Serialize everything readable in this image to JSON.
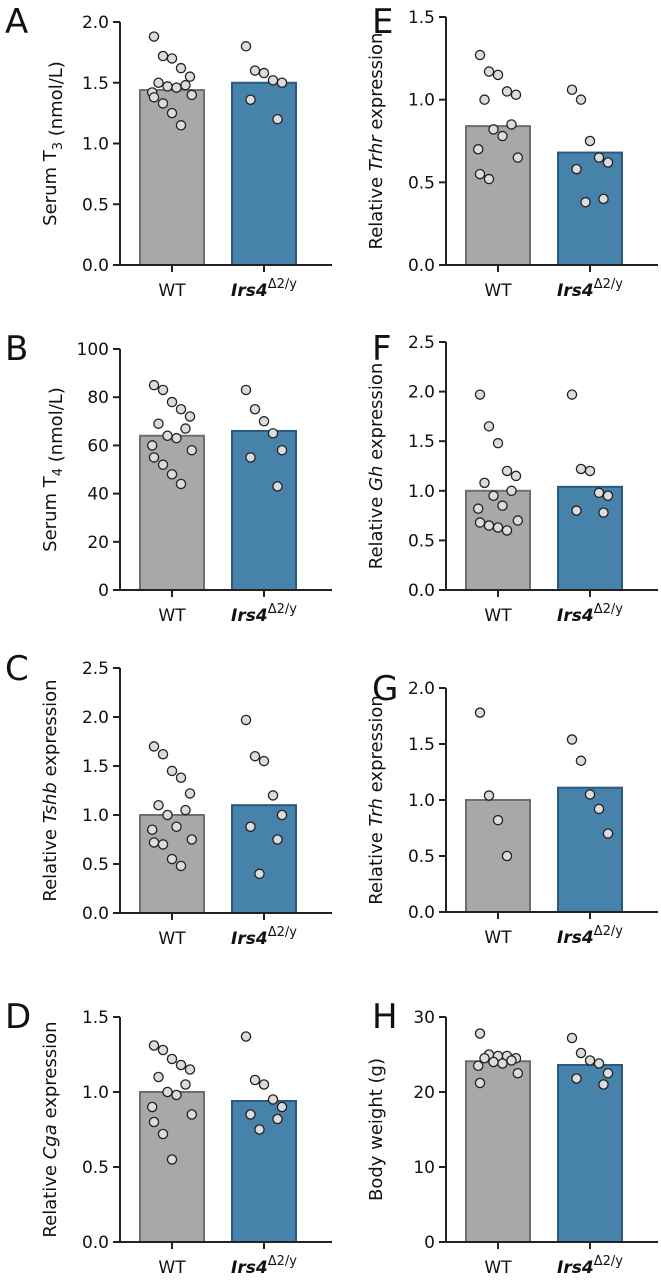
{
  "figure": {
    "colors": {
      "wt_bar": "#a8a8a8",
      "wt_edge": "#6e6e6e",
      "mut_bar": "#4682aa",
      "mut_edge": "#2a5a82",
      "point_fill": "#dcdcdc",
      "point_edge": "#222222"
    }
  },
  "chart_data": [
    {
      "id": "A",
      "panel_label": "A",
      "type": "bar",
      "title": "",
      "ylabel": {
        "pre": "Serum T",
        "sub": "3",
        "post": " (nmol/L)"
      },
      "categories": [
        "WT",
        "Irs4"
      ],
      "category_superscript": "Δ2/y",
      "yticks": [
        "0.0",
        "0.5",
        "1.0",
        "1.5",
        "2.0"
      ],
      "ylim": [
        0,
        2.0
      ],
      "values": [
        1.44,
        1.5
      ],
      "points": [
        [
          1.88,
          1.72,
          1.7,
          1.62,
          1.55,
          1.5,
          1.48,
          1.47,
          1.46,
          1.42,
          1.4,
          1.38,
          1.33,
          1.25,
          1.15
        ],
        [
          1.8,
          1.6,
          1.58,
          1.52,
          1.5,
          1.36,
          1.2
        ]
      ]
    },
    {
      "id": "B",
      "panel_label": "B",
      "type": "bar",
      "title": "",
      "ylabel": {
        "pre": "Serum T",
        "sub": "4",
        "post": " (nmol/L)"
      },
      "categories": [
        "WT",
        "Irs4"
      ],
      "category_superscript": "Δ2/y",
      "yticks": [
        "0",
        "20",
        "40",
        "60",
        "80",
        "100"
      ],
      "ylim": [
        0,
        100
      ],
      "values": [
        64,
        66
      ],
      "points": [
        [
          85,
          83,
          78,
          75,
          72,
          69,
          67,
          64,
          63,
          60,
          58,
          55,
          52,
          48,
          44
        ],
        [
          83,
          75,
          70,
          65,
          58,
          55,
          43
        ]
      ]
    },
    {
      "id": "C",
      "panel_label": "C",
      "type": "bar",
      "title": "",
      "ylabel": {
        "pre": "Relative ",
        "italic": "Tshb",
        "post": " expression"
      },
      "categories": [
        "WT",
        "Irs4"
      ],
      "category_superscript": "Δ2/y",
      "yticks": [
        "0.0",
        "0.5",
        "1.0",
        "1.5",
        "2.0",
        "2.5"
      ],
      "ylim": [
        0,
        2.5
      ],
      "values": [
        1.0,
        1.1
      ],
      "points": [
        [
          1.7,
          1.62,
          1.45,
          1.38,
          1.22,
          1.1,
          1.05,
          1.0,
          0.88,
          0.85,
          0.75,
          0.72,
          0.7,
          0.55,
          0.48
        ],
        [
          1.97,
          1.6,
          1.55,
          1.2,
          1.0,
          0.88,
          0.75,
          0.4
        ]
      ]
    },
    {
      "id": "D",
      "panel_label": "D",
      "type": "bar",
      "title": "",
      "ylabel": {
        "pre": "Relative ",
        "italic": "Cga",
        "post": " expression"
      },
      "categories": [
        "WT",
        "Irs4"
      ],
      "category_superscript": "Δ2/y",
      "yticks": [
        "0.0",
        "0.5",
        "1.0",
        "1.5"
      ],
      "ylim": [
        0,
        1.5
      ],
      "values": [
        1.0,
        0.94
      ],
      "points": [
        [
          1.31,
          1.28,
          1.22,
          1.18,
          1.15,
          1.1,
          1.05,
          1.0,
          0.98,
          0.9,
          0.85,
          0.8,
          0.72,
          0.55
        ],
        [
          1.37,
          1.08,
          1.05,
          0.95,
          0.9,
          0.85,
          0.82,
          0.75
        ]
      ]
    },
    {
      "id": "E",
      "panel_label": "E",
      "type": "bar",
      "title": "",
      "ylabel": {
        "pre": "Relative ",
        "italic": "Trhr",
        "post": " expression"
      },
      "categories": [
        "WT",
        "Irs4"
      ],
      "category_superscript": "Δ2/y",
      "yticks": [
        "0.0",
        "0.5",
        "1.0",
        "1.5"
      ],
      "ylim": [
        0,
        1.5
      ],
      "values": [
        0.84,
        0.68
      ],
      "points": [
        [
          1.27,
          1.17,
          1.15,
          1.05,
          1.03,
          1.0,
          0.85,
          0.82,
          0.78,
          0.7,
          0.65,
          0.55,
          0.52
        ],
        [
          1.06,
          1.0,
          0.75,
          0.65,
          0.62,
          0.58,
          0.4,
          0.38
        ]
      ]
    },
    {
      "id": "F",
      "panel_label": "F",
      "type": "bar",
      "title": "",
      "ylabel": {
        "pre": "Relative ",
        "italic": "Gh",
        "post": " expression"
      },
      "categories": [
        "WT",
        "Irs4"
      ],
      "category_superscript": "Δ2/y",
      "yticks": [
        "0.0",
        "0.5",
        "1.0",
        "1.5",
        "2.0",
        "2.5"
      ],
      "ylim": [
        0,
        2.5
      ],
      "values": [
        1.0,
        1.04
      ],
      "points": [
        [
          1.97,
          1.65,
          1.48,
          1.2,
          1.15,
          1.08,
          1.0,
          0.95,
          0.85,
          0.82,
          0.7,
          0.68,
          0.65,
          0.63,
          0.6
        ],
        [
          1.97,
          1.22,
          1.2,
          0.98,
          0.95,
          0.8,
          0.78
        ]
      ]
    },
    {
      "id": "G",
      "panel_label": "G",
      "type": "bar",
      "title": "",
      "ylabel": {
        "pre": "Relative ",
        "italic": "Trh",
        "post": " expression"
      },
      "categories": [
        "WT",
        "Irs4"
      ],
      "category_superscript": "Δ2/y",
      "yticks": [
        "0.0",
        "0.5",
        "1.0",
        "1.5",
        "2.0"
      ],
      "ylim": [
        0,
        2.0
      ],
      "values": [
        1.0,
        1.11
      ],
      "points": [
        [
          1.78,
          1.04,
          0.82,
          0.5
        ],
        [
          1.54,
          1.35,
          1.05,
          0.92,
          0.7
        ]
      ]
    },
    {
      "id": "H",
      "panel_label": "H",
      "type": "bar",
      "title": "",
      "ylabel": {
        "pre": "Body weight (g)"
      },
      "categories": [
        "WT",
        "Irs4"
      ],
      "category_superscript": "Δ2/y",
      "yticks": [
        "0",
        "10",
        "20",
        "30"
      ],
      "ylim": [
        0,
        30
      ],
      "values": [
        24.1,
        23.6
      ],
      "points": [
        [
          27.8,
          25.0,
          24.8,
          24.8,
          24.5,
          24.5,
          24.2,
          24.0,
          23.8,
          23.5,
          22.5,
          21.2
        ],
        [
          27.2,
          25.2,
          24.2,
          23.8,
          22.5,
          21.8,
          21.0
        ]
      ]
    }
  ]
}
